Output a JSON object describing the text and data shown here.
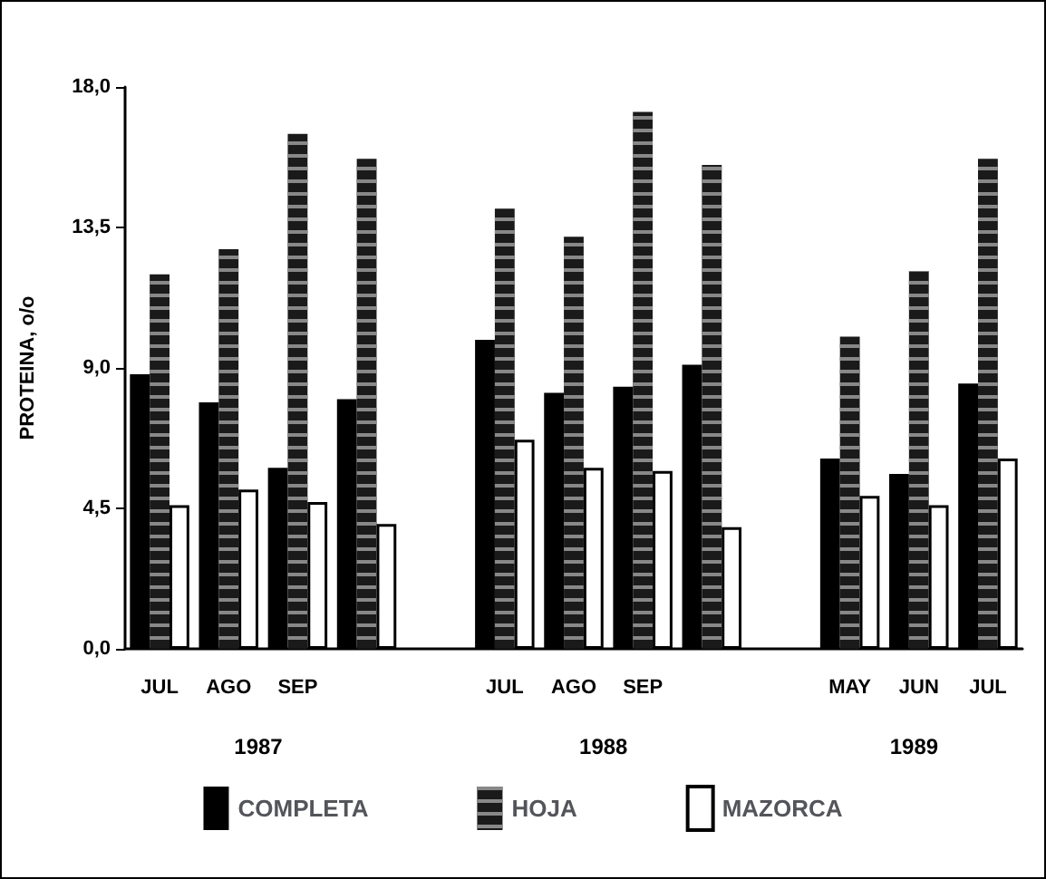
{
  "chart_data": {
    "type": "bar",
    "ylabel": "PROTEINA, o/o",
    "categories": [
      "JUL",
      "AGO",
      "SEP",
      null,
      null,
      "JUL",
      "AGO",
      "SEP",
      null,
      null,
      "MAY",
      "JUN",
      "JUL"
    ],
    "series": [
      {
        "name": "COMPLETA",
        "color": "#000000",
        "values": [
          8.8,
          7.9,
          5.8,
          8.0,
          null,
          9.9,
          8.2,
          8.4,
          9.1,
          null,
          6.1,
          5.6,
          8.5
        ]
      },
      {
        "name": "HOJA",
        "color": "#1a1a1a",
        "values": [
          12.0,
          12.8,
          16.5,
          15.7,
          null,
          14.1,
          13.2,
          17.2,
          15.5,
          null,
          10.0,
          12.1,
          15.7
        ]
      },
      {
        "name": "MAZORCA",
        "color": "#ffffff",
        "values": [
          4.6,
          5.1,
          4.7,
          4.0,
          null,
          6.7,
          5.8,
          5.7,
          3.9,
          null,
          4.9,
          4.6,
          6.1
        ]
      }
    ],
    "ylim": [
      0,
      18
    ],
    "yticks": [
      {
        "value": 0,
        "label": "0,0"
      },
      {
        "value": 4.5,
        "label": "4,5"
      },
      {
        "value": 9,
        "label": "9,0"
      },
      {
        "value": 13.5,
        "label": "13,5"
      },
      {
        "value": 18,
        "label": "18,0"
      }
    ],
    "annotations": [
      "1987",
      "1988",
      "1989"
    ],
    "grid": false,
    "legend": "bottom"
  }
}
